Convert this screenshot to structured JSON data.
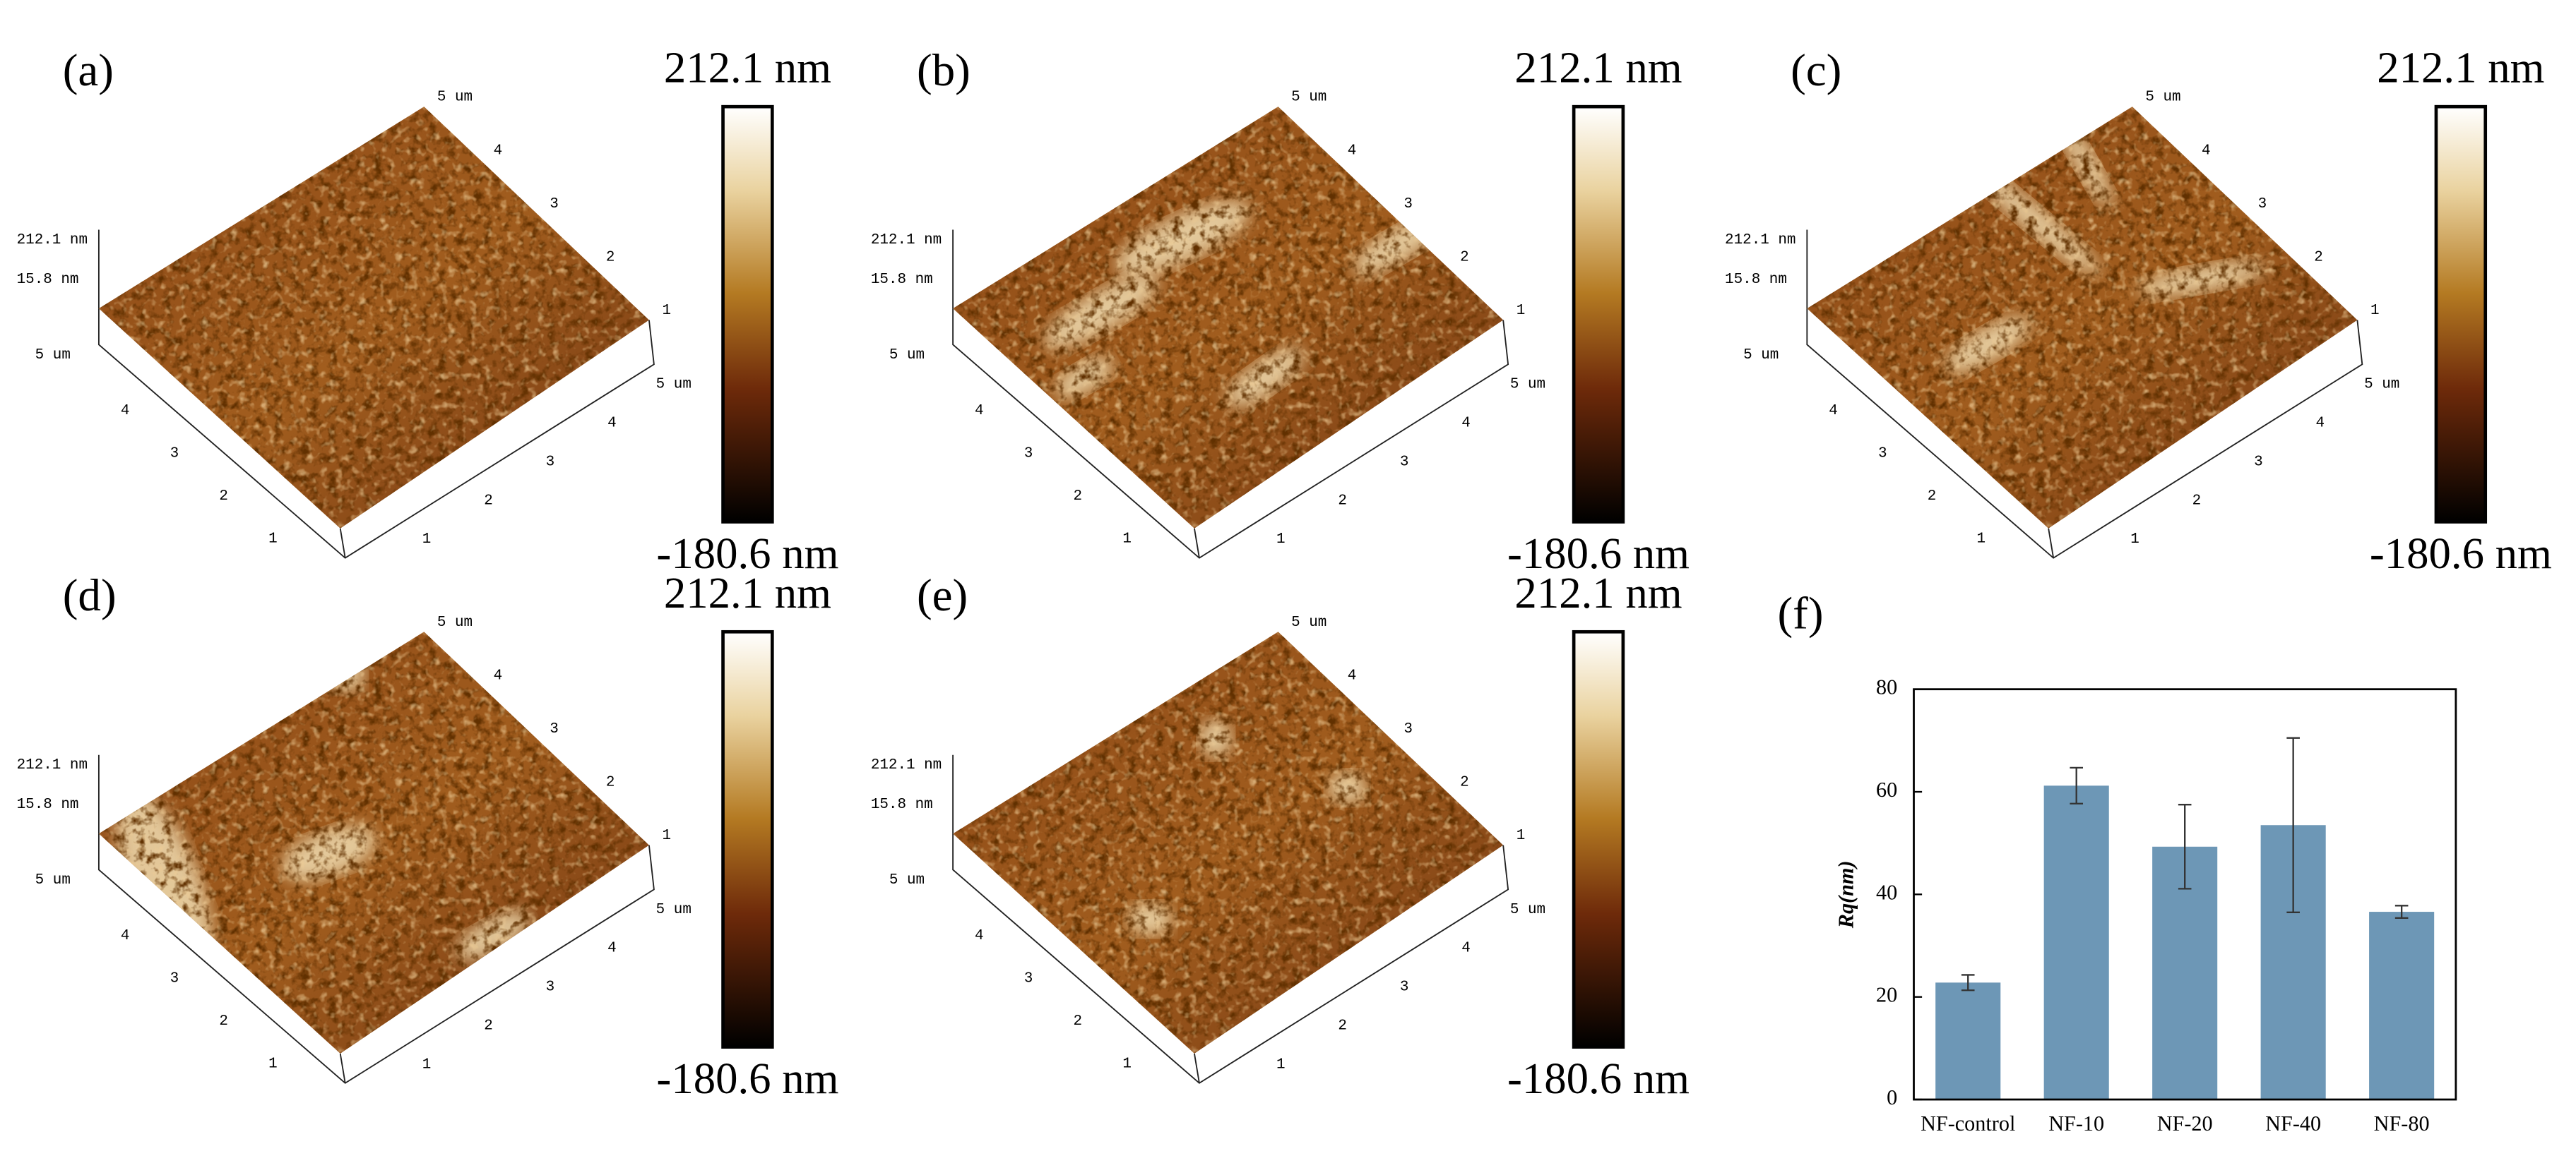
{
  "afm_panels": [
    {
      "label": "(a)",
      "colorbar_max": "212.1 nm",
      "colorbar_min": "-180.6 nm",
      "z_labels": [
        "212.1 nm",
        "15.8 nm"
      ],
      "left_ticks": [
        "1",
        "2",
        "3",
        "4",
        "5 um"
      ],
      "front_ticks": [
        "1",
        "2",
        "3",
        "4",
        "5 um"
      ],
      "back_ticks": [
        "1",
        "2",
        "3",
        "4",
        "5 um"
      ]
    },
    {
      "label": "(b)",
      "colorbar_max": "212.1 nm",
      "colorbar_min": "-180.6 nm",
      "z_labels": [
        "212.1 nm",
        "15.8 nm"
      ],
      "left_ticks": [
        "1",
        "2",
        "3",
        "4",
        "5 um"
      ],
      "front_ticks": [
        "1",
        "2",
        "3",
        "4",
        "5 um"
      ],
      "back_ticks": [
        "1",
        "2",
        "3",
        "4",
        "5 um"
      ]
    },
    {
      "label": "(c)",
      "colorbar_max": "212.1 nm",
      "colorbar_min": "-180.6 nm",
      "z_labels": [
        "212.1 nm",
        "15.8 nm"
      ],
      "left_ticks": [
        "1",
        "2",
        "3",
        "4",
        "5 um"
      ],
      "front_ticks": [
        "1",
        "2",
        "3",
        "4",
        "5 um"
      ],
      "back_ticks": [
        "1",
        "2",
        "3",
        "4",
        "5 um"
      ]
    },
    {
      "label": "(d)",
      "colorbar_max": "212.1 nm",
      "colorbar_min": "-180.6 nm",
      "z_labels": [
        "212.1 nm",
        "15.8 nm"
      ],
      "left_ticks": [
        "1",
        "2",
        "3",
        "4",
        "5 um"
      ],
      "front_ticks": [
        "1",
        "2",
        "3",
        "4",
        "5 um"
      ],
      "back_ticks": [
        "1",
        "2",
        "3",
        "4",
        "5 um"
      ]
    },
    {
      "label": "(e)",
      "colorbar_max": "212.1 nm",
      "colorbar_min": "-180.6 nm",
      "z_labels": [
        "212.1 nm",
        "15.8 nm"
      ],
      "left_ticks": [
        "1",
        "2",
        "3",
        "4",
        "5 um"
      ],
      "front_ticks": [
        "1",
        "2",
        "3",
        "4",
        "5 um"
      ],
      "back_ticks": [
        "1",
        "2",
        "3",
        "4",
        "5 um"
      ]
    }
  ],
  "chart_data": {
    "type": "bar",
    "label": "(f)",
    "y_label": "Rq(nm)",
    "categories": [
      "NF-control",
      "NF-10",
      "NF-20",
      "NF-40",
      "NF-80"
    ],
    "values": [
      22.8,
      61.2,
      49.3,
      53.5,
      36.6
    ],
    "errors": [
      1.5,
      3.5,
      8.2,
      17,
      1.2
    ],
    "color": "#6d97b6",
    "ylim": [
      0,
      80
    ],
    "yticks": [
      0,
      20,
      40,
      60,
      80
    ]
  }
}
